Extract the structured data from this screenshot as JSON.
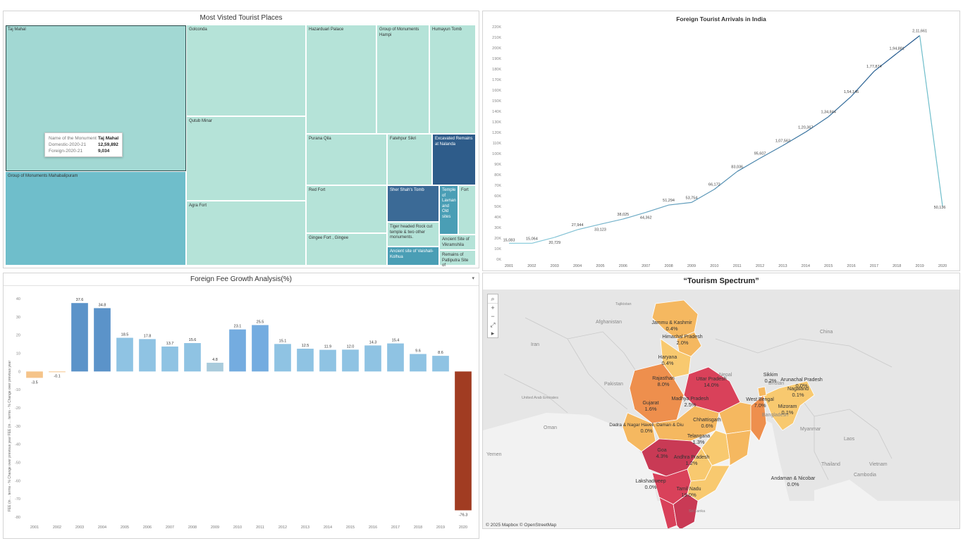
{
  "colors": {
    "treemap_light": "#b5e3d8",
    "treemap_mid": "#a2d8d3",
    "treemap_teal": "#6fbecb",
    "treemap_dark": "#2e5c8a",
    "treemap_blue": "#3b6a96",
    "treemap_cyan": "#4a9eb5",
    "line_color": "#3b7cb4",
    "bar_blue": "#8fc3e3",
    "bar_dark": "#5b9bcf",
    "bar_neg_light": "#f5c48a",
    "bar_neg_dark": "#a13c22"
  },
  "treemap": {
    "title": "Most Visted Tourist Places",
    "tiles": [
      {
        "label": "Taj Mahal",
        "shade": "mid"
      },
      {
        "label": "Group of Monuments Mahabalipuram",
        "shade": "teal"
      },
      {
        "label": "Golconda",
        "shade": "light"
      },
      {
        "label": "Qutub Minar",
        "shade": "light"
      },
      {
        "label": "Agra Fort",
        "shade": "light"
      },
      {
        "label": "Hazarduari Palace",
        "shade": "light"
      },
      {
        "label": "Group of Monuments Hampi",
        "shade": "light"
      },
      {
        "label": "Humayun Tomb",
        "shade": "light"
      },
      {
        "label": "Purana Qila",
        "shade": "light"
      },
      {
        "label": "Fatehpur Sikri",
        "shade": "light"
      },
      {
        "label": "Excavated Remains at Nalanda",
        "shade": "dark"
      },
      {
        "label": "Red Fort",
        "shade": "light"
      },
      {
        "label": "Sher Shah's Tomb",
        "shade": "blue"
      },
      {
        "label": "Temple of Lavnan and Old sites",
        "shade": "cyan"
      },
      {
        "label": "Fort",
        "shade": "light"
      },
      {
        "label": "Tiger headed Rock cut temple & two other monuments.",
        "shade": "light"
      },
      {
        "label": "Gingee Fort , Gingee",
        "shade": "light"
      },
      {
        "label": "Ancient Site of Vikramshila",
        "shade": "light"
      },
      {
        "label": "Ancient site of Vaishali- Kolhua",
        "shade": "cyan"
      },
      {
        "label": "Remains of Patliputra Site of",
        "shade": "light"
      }
    ],
    "tooltip": {
      "rows": [
        {
          "key": "Name of the Monument",
          "value": "Taj Mahal"
        },
        {
          "key": "Domestic-2020-21",
          "value": "12,59,892"
        },
        {
          "key": "Foreign-2020-21",
          "value": "9,034"
        }
      ]
    }
  },
  "line_chart": {
    "title": "Foreign Tourist Arrivals in India"
  },
  "bar_chart": {
    "title": "Foreign Fee Growth Analysis(%)",
    "dropdown": "▾",
    "ylabel": "FEE (in ... terms - % Change over previous year FEE (in ... terms - % Change over previous year"
  },
  "map": {
    "title": "“Tourism Spectrum”",
    "attribution": "© 2025 Mapbox © OpenStreetMap",
    "controls": [
      "⌕",
      "+",
      "−",
      "⤢",
      "▸"
    ],
    "country_labels": [
      "Afghanistan",
      "Iran",
      "Pakistan",
      "China",
      "Nepal",
      "Bhutan",
      "Bangladesh",
      "Myanmar",
      "Thailand",
      "Laos",
      "Vietnam",
      "Cambodia",
      "Oman",
      "Yemen",
      "United Arab Emirates",
      "Sri Lanka",
      "Tajikistan"
    ],
    "states": [
      {
        "name": "Jammu & Kashmir",
        "value": "0.4%"
      },
      {
        "name": "Himachal Pradesh",
        "value": "2.0%"
      },
      {
        "name": "Haryana",
        "value": "0.4%"
      },
      {
        "name": "Uttar Pradesh",
        "value": "14.0%"
      },
      {
        "name": "Rajasthan",
        "value": "8.0%"
      },
      {
        "name": "Sikkim",
        "value": "0.2%"
      },
      {
        "name": "Arunachal Pradesh",
        "value": "0.0%"
      },
      {
        "name": "Nagaland",
        "value": "0.1%"
      },
      {
        "name": "West Bengal",
        "value": "7.0%"
      },
      {
        "name": "Mizoram",
        "value": "0.1%"
      },
      {
        "name": "Madhya Pradesh",
        "value": "2.5%"
      },
      {
        "name": "Gujarat",
        "value": "1.6%"
      },
      {
        "name": "Chhattisgarh",
        "value": "0.6%"
      },
      {
        "name": "Dadra & Nagar Haveli, Daman & Diu",
        "value": "0.0%"
      },
      {
        "name": "Telangana",
        "value": "1.3%"
      },
      {
        "name": "Goa",
        "value": "4.3%"
      },
      {
        "name": "Andhra Pradesh",
        "value": "1.2%"
      },
      {
        "name": "Lakshadweep",
        "value": "0.0%"
      },
      {
        "name": "Tamil Nadu",
        "value": "19.0%"
      },
      {
        "name": "Andaman & Nicobar",
        "value": "0.0%"
      }
    ]
  },
  "chart_data": [
    {
      "type": "line",
      "title": "Foreign Tourist Arrivals in India",
      "x": [
        "2001",
        "2002",
        "2003",
        "2004",
        "2005",
        "2006",
        "2007",
        "2008",
        "2009",
        "2010",
        "2011",
        "2012",
        "2013",
        "2014",
        "2015",
        "2016",
        "2017",
        "2018",
        "2019",
        "2020"
      ],
      "values": [
        15083,
        15064,
        20729,
        27944,
        33123,
        38025,
        44362,
        51294,
        53754,
        66172,
        83036,
        95607,
        107563,
        120367,
        134844,
        154146,
        177874,
        194881,
        211661,
        50136
      ],
      "value_labels": [
        "15,083",
        "15,064",
        "20,729",
        "27,944",
        "33,123",
        "38,025",
        "44,362",
        "51,294",
        "53,754",
        "66,172",
        "83,036",
        "95,607",
        "1,07,563",
        "1,20,367",
        "1,34,844",
        "1,54,146",
        "1,77,874",
        "1,94,881",
        "2,11,661",
        "50,136"
      ],
      "ylim": [
        0,
        220000
      ],
      "yticks": [
        "0K",
        "10K",
        "20K",
        "30K",
        "40K",
        "50K",
        "60K",
        "70K",
        "80K",
        "90K",
        "100K",
        "110K",
        "120K",
        "130K",
        "140K",
        "150K",
        "160K",
        "170K",
        "180K",
        "190K",
        "200K",
        "210K",
        "220K"
      ]
    },
    {
      "type": "bar",
      "title": "Foreign Fee Growth Analysis(%)",
      "categories": [
        "2001",
        "2002",
        "2003",
        "2004",
        "2005",
        "2006",
        "2007",
        "2008",
        "2009",
        "2010",
        "2011",
        "2012",
        "2013",
        "2014",
        "2015",
        "2016",
        "2017",
        "2018",
        "2019",
        "2020"
      ],
      "values": [
        -3.5,
        -0.1,
        37.6,
        34.8,
        18.5,
        17.8,
        13.7,
        15.6,
        4.8,
        23.1,
        25.5,
        15.1,
        12.5,
        11.9,
        12.0,
        14.3,
        15.4,
        9.6,
        8.6,
        -76.3
      ],
      "value_labels": [
        "-3.5",
        "-0.1",
        "37.6",
        "34.8",
        "18.5",
        "17.8",
        "13.7",
        "15.6",
        "4.8",
        "23.1",
        "25.5",
        "15.1",
        "12.5",
        "11.9",
        "12.0",
        "14.3",
        "15.4",
        "9.6",
        "8.6",
        "-76.3"
      ],
      "ylim": [
        -80,
        40
      ],
      "yticks": [
        "40",
        "30",
        "20",
        "10",
        "0",
        "-10",
        "-20",
        "-30",
        "-40",
        "-50",
        "-60",
        "-70",
        "-80"
      ],
      "ylabel": "FEE (in ... terms - % Change over previous year FEE (in ... terms - % Change over previous year"
    }
  ]
}
